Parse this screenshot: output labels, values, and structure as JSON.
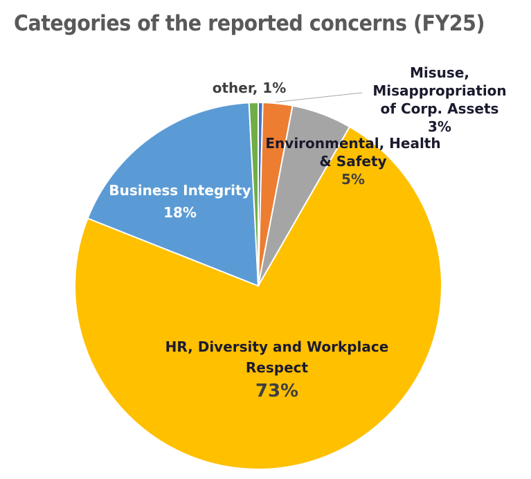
{
  "chart_data": {
    "type": "pie",
    "title": "Categories of the reported concerns (FY25)",
    "start_angle": "12 o'clock",
    "direction": "clockwise",
    "slices": [
      {
        "name": "",
        "value": 0.4,
        "label": "",
        "color": "#4472C4"
      },
      {
        "name": "Misuse, Misappropriation of Corp. Assets",
        "value": 2.6,
        "label": "3%",
        "color": "#ED7D31"
      },
      {
        "name": "Environmental, Health & Safety",
        "value": 5.3,
        "label": "5%",
        "color": "#A5A5A5"
      },
      {
        "name": "HR, Diversity and Workplace Respect",
        "value": 72.7,
        "label": "73%",
        "color": "#FFC000"
      },
      {
        "name": "Business  Integrity",
        "value": 18.2,
        "label": "18%",
        "color": "#5B9BD5"
      },
      {
        "name": "other",
        "value": 0.8,
        "label": "1%",
        "color": "#70AD47"
      }
    ],
    "labels": {
      "misuse": [
        "Misuse,",
        "Misappropriation",
        "of Corp. Assets",
        "3%"
      ],
      "ehs": [
        "Environmental, Health",
        "& Safety",
        "5%"
      ],
      "hr": [
        "HR, Diversity and Workplace",
        "Respect",
        "73%"
      ],
      "business": [
        "Business  Integrity",
        "18%"
      ],
      "other": "other, 1%"
    }
  }
}
